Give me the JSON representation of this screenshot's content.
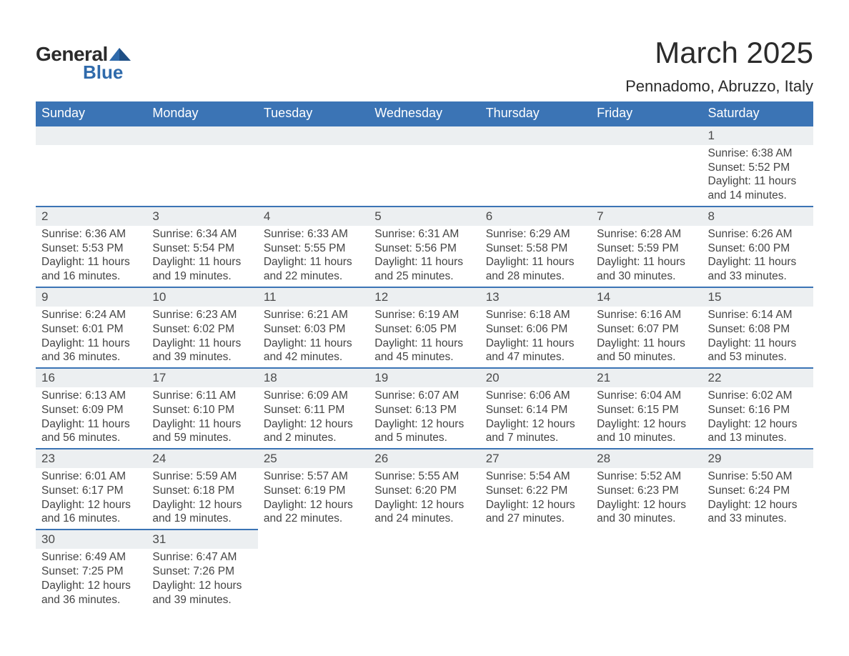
{
  "brand": {
    "text_a": "General",
    "text_b": "Blue",
    "accent": "#2f6aab"
  },
  "header": {
    "month_title": "March 2025",
    "location": "Pennadomo, Abruzzo, Italy"
  },
  "colors": {
    "header_bg": "#3b74b5",
    "header_fg": "#ffffff",
    "daynum_bg": "#eceff1",
    "daynum_border": "#3b74b5",
    "body_text": "#444444",
    "page_bg": "#ffffff"
  },
  "weekdays": [
    "Sunday",
    "Monday",
    "Tuesday",
    "Wednesday",
    "Thursday",
    "Friday",
    "Saturday"
  ],
  "weeks": [
    [
      {
        "blank": true
      },
      {
        "blank": true
      },
      {
        "blank": true
      },
      {
        "blank": true
      },
      {
        "blank": true
      },
      {
        "blank": true
      },
      {
        "n": "1",
        "sunrise": "Sunrise: 6:38 AM",
        "sunset": "Sunset: 5:52 PM",
        "day_a": "Daylight: 11 hours",
        "day_b": "and 14 minutes."
      }
    ],
    [
      {
        "n": "2",
        "sunrise": "Sunrise: 6:36 AM",
        "sunset": "Sunset: 5:53 PM",
        "day_a": "Daylight: 11 hours",
        "day_b": "and 16 minutes."
      },
      {
        "n": "3",
        "sunrise": "Sunrise: 6:34 AM",
        "sunset": "Sunset: 5:54 PM",
        "day_a": "Daylight: 11 hours",
        "day_b": "and 19 minutes."
      },
      {
        "n": "4",
        "sunrise": "Sunrise: 6:33 AM",
        "sunset": "Sunset: 5:55 PM",
        "day_a": "Daylight: 11 hours",
        "day_b": "and 22 minutes."
      },
      {
        "n": "5",
        "sunrise": "Sunrise: 6:31 AM",
        "sunset": "Sunset: 5:56 PM",
        "day_a": "Daylight: 11 hours",
        "day_b": "and 25 minutes."
      },
      {
        "n": "6",
        "sunrise": "Sunrise: 6:29 AM",
        "sunset": "Sunset: 5:58 PM",
        "day_a": "Daylight: 11 hours",
        "day_b": "and 28 minutes."
      },
      {
        "n": "7",
        "sunrise": "Sunrise: 6:28 AM",
        "sunset": "Sunset: 5:59 PM",
        "day_a": "Daylight: 11 hours",
        "day_b": "and 30 minutes."
      },
      {
        "n": "8",
        "sunrise": "Sunrise: 6:26 AM",
        "sunset": "Sunset: 6:00 PM",
        "day_a": "Daylight: 11 hours",
        "day_b": "and 33 minutes."
      }
    ],
    [
      {
        "n": "9",
        "sunrise": "Sunrise: 6:24 AM",
        "sunset": "Sunset: 6:01 PM",
        "day_a": "Daylight: 11 hours",
        "day_b": "and 36 minutes."
      },
      {
        "n": "10",
        "sunrise": "Sunrise: 6:23 AM",
        "sunset": "Sunset: 6:02 PM",
        "day_a": "Daylight: 11 hours",
        "day_b": "and 39 minutes."
      },
      {
        "n": "11",
        "sunrise": "Sunrise: 6:21 AM",
        "sunset": "Sunset: 6:03 PM",
        "day_a": "Daylight: 11 hours",
        "day_b": "and 42 minutes."
      },
      {
        "n": "12",
        "sunrise": "Sunrise: 6:19 AM",
        "sunset": "Sunset: 6:05 PM",
        "day_a": "Daylight: 11 hours",
        "day_b": "and 45 minutes."
      },
      {
        "n": "13",
        "sunrise": "Sunrise: 6:18 AM",
        "sunset": "Sunset: 6:06 PM",
        "day_a": "Daylight: 11 hours",
        "day_b": "and 47 minutes."
      },
      {
        "n": "14",
        "sunrise": "Sunrise: 6:16 AM",
        "sunset": "Sunset: 6:07 PM",
        "day_a": "Daylight: 11 hours",
        "day_b": "and 50 minutes."
      },
      {
        "n": "15",
        "sunrise": "Sunrise: 6:14 AM",
        "sunset": "Sunset: 6:08 PM",
        "day_a": "Daylight: 11 hours",
        "day_b": "and 53 minutes."
      }
    ],
    [
      {
        "n": "16",
        "sunrise": "Sunrise: 6:13 AM",
        "sunset": "Sunset: 6:09 PM",
        "day_a": "Daylight: 11 hours",
        "day_b": "and 56 minutes."
      },
      {
        "n": "17",
        "sunrise": "Sunrise: 6:11 AM",
        "sunset": "Sunset: 6:10 PM",
        "day_a": "Daylight: 11 hours",
        "day_b": "and 59 minutes."
      },
      {
        "n": "18",
        "sunrise": "Sunrise: 6:09 AM",
        "sunset": "Sunset: 6:11 PM",
        "day_a": "Daylight: 12 hours",
        "day_b": "and 2 minutes."
      },
      {
        "n": "19",
        "sunrise": "Sunrise: 6:07 AM",
        "sunset": "Sunset: 6:13 PM",
        "day_a": "Daylight: 12 hours",
        "day_b": "and 5 minutes."
      },
      {
        "n": "20",
        "sunrise": "Sunrise: 6:06 AM",
        "sunset": "Sunset: 6:14 PM",
        "day_a": "Daylight: 12 hours",
        "day_b": "and 7 minutes."
      },
      {
        "n": "21",
        "sunrise": "Sunrise: 6:04 AM",
        "sunset": "Sunset: 6:15 PM",
        "day_a": "Daylight: 12 hours",
        "day_b": "and 10 minutes."
      },
      {
        "n": "22",
        "sunrise": "Sunrise: 6:02 AM",
        "sunset": "Sunset: 6:16 PM",
        "day_a": "Daylight: 12 hours",
        "day_b": "and 13 minutes."
      }
    ],
    [
      {
        "n": "23",
        "sunrise": "Sunrise: 6:01 AM",
        "sunset": "Sunset: 6:17 PM",
        "day_a": "Daylight: 12 hours",
        "day_b": "and 16 minutes."
      },
      {
        "n": "24",
        "sunrise": "Sunrise: 5:59 AM",
        "sunset": "Sunset: 6:18 PM",
        "day_a": "Daylight: 12 hours",
        "day_b": "and 19 minutes."
      },
      {
        "n": "25",
        "sunrise": "Sunrise: 5:57 AM",
        "sunset": "Sunset: 6:19 PM",
        "day_a": "Daylight: 12 hours",
        "day_b": "and 22 minutes."
      },
      {
        "n": "26",
        "sunrise": "Sunrise: 5:55 AM",
        "sunset": "Sunset: 6:20 PM",
        "day_a": "Daylight: 12 hours",
        "day_b": "and 24 minutes."
      },
      {
        "n": "27",
        "sunrise": "Sunrise: 5:54 AM",
        "sunset": "Sunset: 6:22 PM",
        "day_a": "Daylight: 12 hours",
        "day_b": "and 27 minutes."
      },
      {
        "n": "28",
        "sunrise": "Sunrise: 5:52 AM",
        "sunset": "Sunset: 6:23 PM",
        "day_a": "Daylight: 12 hours",
        "day_b": "and 30 minutes."
      },
      {
        "n": "29",
        "sunrise": "Sunrise: 5:50 AM",
        "sunset": "Sunset: 6:24 PM",
        "day_a": "Daylight: 12 hours",
        "day_b": "and 33 minutes."
      }
    ],
    [
      {
        "n": "30",
        "sunrise": "Sunrise: 6:49 AM",
        "sunset": "Sunset: 7:25 PM",
        "day_a": "Daylight: 12 hours",
        "day_b": "and 36 minutes."
      },
      {
        "n": "31",
        "sunrise": "Sunrise: 6:47 AM",
        "sunset": "Sunset: 7:26 PM",
        "day_a": "Daylight: 12 hours",
        "day_b": "and 39 minutes."
      },
      {
        "blank": true,
        "nohdr": true
      },
      {
        "blank": true,
        "nohdr": true
      },
      {
        "blank": true,
        "nohdr": true
      },
      {
        "blank": true,
        "nohdr": true
      },
      {
        "blank": true,
        "nohdr": true
      }
    ]
  ]
}
